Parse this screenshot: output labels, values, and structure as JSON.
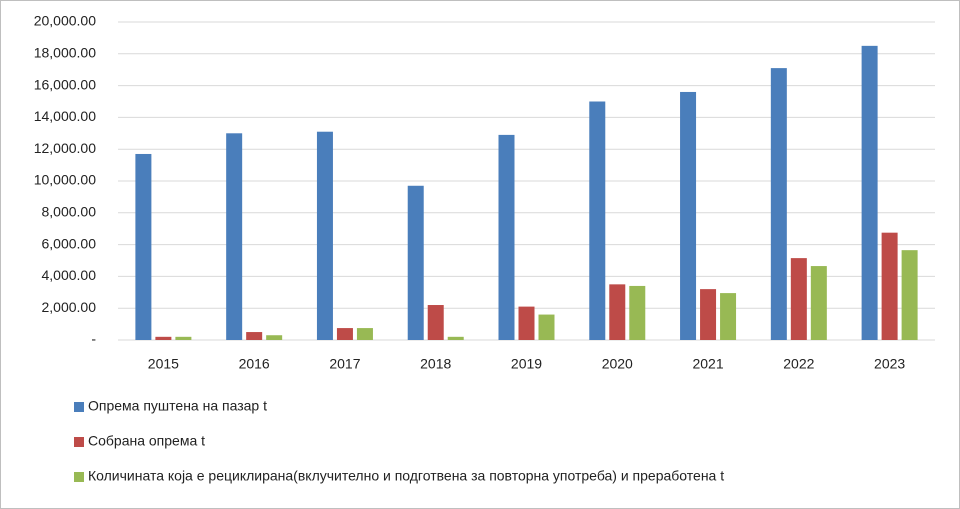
{
  "chart_data": {
    "type": "bar",
    "categories": [
      "2015",
      "2016",
      "2017",
      "2018",
      "2019",
      "2020",
      "2021",
      "2022",
      "2023"
    ],
    "series": [
      {
        "name": "Опрема пуштена на пазар t",
        "color": "#4a7ebb",
        "values": [
          11700,
          13000,
          13100,
          9700,
          12900,
          15000,
          15600,
          17100,
          18500
        ]
      },
      {
        "name": "Собрана опрема t",
        "color": "#be4b48",
        "values": [
          200,
          500,
          750,
          2200,
          2100,
          3500,
          3200,
          5150,
          6750
        ]
      },
      {
        "name": "Количината која е рециклирана(вклучително и подготвена за повторна употреба) и преработена t",
        "color": "#98b954",
        "values": [
          200,
          300,
          750,
          200,
          1600,
          3400,
          2950,
          4650,
          5650
        ]
      }
    ],
    "ylim": [
      0,
      20000
    ],
    "yticks": [
      {
        "value": 0,
        "label": "-"
      },
      {
        "value": 2000,
        "label": "2,000.00"
      },
      {
        "value": 4000,
        "label": "4,000.00"
      },
      {
        "value": 6000,
        "label": "6,000.00"
      },
      {
        "value": 8000,
        "label": "8,000.00"
      },
      {
        "value": 10000,
        "label": "10,000.00"
      },
      {
        "value": 12000,
        "label": "12,000.00"
      },
      {
        "value": 14000,
        "label": "14,000.00"
      },
      {
        "value": 16000,
        "label": "16,000.00"
      },
      {
        "value": 18000,
        "label": "18,000.00"
      },
      {
        "value": 20000,
        "label": "20,000.00"
      }
    ],
    "grid": true,
    "legend": "bottom"
  }
}
